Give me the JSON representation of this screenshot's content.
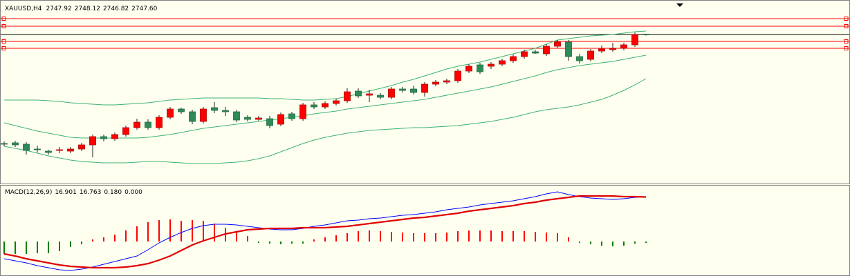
{
  "chart_data": [
    {
      "type": "candlestick",
      "title": "XAUUSD,H4",
      "open": [
        2668.6,
        2669.1,
        2668.1,
        2664.6,
        2663.1,
        2663.6,
        2663.1,
        2664.6,
        2667.6,
        2673.6,
        2672.1,
        2675.1,
        2680.1,
        2684.1,
        2680.1,
        2687.6,
        2693.6,
        2691.6,
        2684.6,
        2694.6,
        2692.6,
        2691.6,
        2687.6,
        2686.1,
        2686.6,
        2682.6,
        2690.1,
        2686.6,
        2696.6,
        2695.1,
        2697.6,
        2699.6,
        2706.6,
        2703.6,
        2703.6,
        2702.1,
        2708.1,
        2708.1,
        2705.6,
        2711.6,
        2713.1,
        2714.1,
        2721.1,
        2725.6,
        2724.6,
        2726.1,
        2728.6,
        2731.6,
        2735.1,
        2733.6,
        2739.1,
        2742.1,
        2731.6,
        2729.6,
        2735.6,
        2736.6,
        2737.6,
        2740.1,
        2747.92
      ],
      "high": [
        2670.1,
        2670.6,
        2669.6,
        2667.1,
        2664.1,
        2666.1,
        2666.1,
        2669.1,
        2675.1,
        2675.1,
        2676.6,
        2681.6,
        2686.6,
        2686.1,
        2689.1,
        2695.1,
        2694.6,
        2693.1,
        2695.1,
        2698.6,
        2695.1,
        2693.1,
        2689.1,
        2688.6,
        2688.6,
        2691.1,
        2691.6,
        2698.1,
        2698.6,
        2699.1,
        2701.1,
        2708.6,
        2708.6,
        2707.6,
        2705.1,
        2709.6,
        2709.6,
        2710.6,
        2713.1,
        2714.6,
        2715.6,
        2722.6,
        2726.1,
        2727.1,
        2727.6,
        2730.1,
        2733.1,
        2736.6,
        2736.6,
        2740.6,
        2743.6,
        2743.6,
        2733.6,
        2737.1,
        2739.6,
        2741.6,
        2741.6,
        2749.1,
        2748.12
      ],
      "low": [
        2666.6,
        2666.1,
        2660.6,
        2662.1,
        2660.6,
        2661.6,
        2661.6,
        2663.1,
        2658.6,
        2670.1,
        2670.6,
        2673.6,
        2678.6,
        2678.6,
        2678.6,
        2686.1,
        2690.1,
        2682.6,
        2683.1,
        2690.6,
        2688.6,
        2684.1,
        2684.6,
        2685.1,
        2679.6,
        2681.1,
        2685.1,
        2685.1,
        2693.6,
        2693.6,
        2696.1,
        2698.1,
        2701.6,
        2698.6,
        2700.6,
        2700.6,
        2705.6,
        2704.1,
        2702.6,
        2710.1,
        2711.6,
        2712.6,
        2719.6,
        2719.1,
        2722.6,
        2724.6,
        2727.1,
        2730.1,
        2733.6,
        2732.1,
        2737.6,
        2728.6,
        2726.6,
        2728.1,
        2734.1,
        2735.1,
        2736.1,
        2738.6,
        2746.82
      ],
      "close": [
        2668.1,
        2667.6,
        2663.6,
        2664.1,
        2662.1,
        2664.1,
        2664.6,
        2667.6,
        2673.6,
        2672.1,
        2675.1,
        2680.1,
        2684.1,
        2680.1,
        2687.6,
        2693.6,
        2691.6,
        2684.6,
        2693.6,
        2692.6,
        2691.6,
        2685.6,
        2686.1,
        2687.1,
        2681.6,
        2689.6,
        2686.6,
        2696.6,
        2695.1,
        2697.6,
        2699.6,
        2706.1,
        2703.1,
        2704.6,
        2702.1,
        2708.1,
        2707.1,
        2705.6,
        2711.6,
        2713.1,
        2714.1,
        2721.1,
        2724.6,
        2720.6,
        2726.1,
        2728.6,
        2731.6,
        2735.1,
        2734.1,
        2739.1,
        2742.1,
        2731.6,
        2728.6,
        2735.6,
        2737.1,
        2737.6,
        2740.1,
        2747.6,
        2747.6
      ],
      "close_value_label": "2747.60",
      "up_color": "#ff0000",
      "down_color": "#2e8b57",
      "series": [
        {
          "color": "#3cb371",
          "values": [
            2700.1,
            2700.1,
            2700.1,
            2700.1,
            2699.6,
            2699.1,
            2698.1,
            2697.6,
            2697.1,
            2696.6,
            2696.6,
            2697.1,
            2697.6,
            2698.1,
            2699.1,
            2700.1,
            2700.6,
            2701.1,
            2701.6,
            2701.6,
            2701.6,
            2701.6,
            2701.6,
            2701.6,
            2701.1,
            2701.1,
            2700.6,
            2700.1,
            2700.1,
            2700.6,
            2701.1,
            2702.6,
            2704.6,
            2706.6,
            2708.6,
            2710.6,
            2713.1,
            2715.1,
            2717.6,
            2720.1,
            2722.6,
            2724.6,
            2726.1,
            2727.6,
            2729.6,
            2731.6,
            2733.6,
            2735.6,
            2737.6,
            2740.6,
            2743.6,
            2744.6,
            2745.6,
            2746.6,
            2747.1,
            2747.6,
            2748.6,
            2749.6,
            2750.1
          ]
        },
        {
          "color": "#3cb371",
          "values": [
            2683.6,
            2681.6,
            2679.6,
            2677.6,
            2676.1,
            2674.6,
            2673.1,
            2672.6,
            2672.6,
            2672.6,
            2672.6,
            2672.6,
            2672.6,
            2673.1,
            2674.1,
            2675.1,
            2676.6,
            2678.1,
            2679.6,
            2680.6,
            2681.6,
            2682.6,
            2683.6,
            2684.6,
            2685.6,
            2686.6,
            2687.6,
            2688.6,
            2690.1,
            2691.1,
            2692.1,
            2693.6,
            2694.6,
            2695.6,
            2696.6,
            2697.6,
            2698.6,
            2699.6,
            2700.6,
            2702.1,
            2703.6,
            2705.1,
            2706.6,
            2708.1,
            2709.6,
            2711.6,
            2713.6,
            2715.6,
            2717.6,
            2720.1,
            2722.1,
            2723.6,
            2725.1,
            2726.1,
            2727.1,
            2728.1,
            2729.6,
            2731.1,
            2732.6
          ]
        },
        {
          "color": "#3cb371",
          "values": [
            2666.6,
            2665.1,
            2663.6,
            2661.6,
            2659.6,
            2658.1,
            2656.6,
            2655.6,
            2655.1,
            2654.6,
            2654.6,
            2654.6,
            2655.1,
            2655.6,
            2655.6,
            2655.1,
            2654.6,
            2654.1,
            2654.1,
            2654.1,
            2654.6,
            2655.1,
            2656.1,
            2657.6,
            2659.6,
            2662.6,
            2665.6,
            2668.6,
            2671.1,
            2673.1,
            2674.6,
            2676.1,
            2677.1,
            2678.1,
            2678.6,
            2679.1,
            2679.6,
            2680.1,
            2680.1,
            2680.6,
            2681.1,
            2681.6,
            2682.6,
            2683.6,
            2684.6,
            2686.1,
            2687.6,
            2689.6,
            2691.6,
            2693.1,
            2694.1,
            2695.1,
            2696.6,
            2698.6,
            2700.6,
            2703.6,
            2707.1,
            2711.1,
            2715.6
          ]
        }
      ],
      "levels": [
        2759.1,
        2753.6,
        2742.6,
        2737.6
      ],
      "level_color": "#ff0000",
      "ylim": [
        2639.6,
        2770.6
      ]
    },
    {
      "type": "macd",
      "title": "MACD(12,26,9)",
      "series": [
        {
          "color": "#0000ff",
          "values": [
            -6.5,
            -7.28,
            -8.06,
            -9.1,
            -9.88,
            -10.66,
            -10.92,
            -10.4,
            -9.62,
            -8.58,
            -7.54,
            -6.5,
            -5.46,
            -3.12,
            -0.52,
            1.56,
            3.38,
            4.94,
            5.98,
            6.5,
            6.5,
            6.24,
            5.72,
            5.2,
            4.68,
            4.42,
            4.42,
            4.94,
            5.72,
            6.24,
            7.02,
            7.8,
            8.06,
            8.58,
            8.84,
            9.36,
            9.88,
            10.14,
            10.66,
            11.18,
            11.96,
            12.48,
            13,
            13.78,
            14.3,
            14.82,
            15.34,
            16.12,
            16.9,
            17.94,
            18.72,
            17.68,
            16.9,
            16.38,
            16.12,
            15.86,
            16.12,
            16.64,
            16.901
          ]
        },
        {
          "color": "#e00000",
          "values": [
            -4.68,
            -5.46,
            -6.5,
            -7.28,
            -8.06,
            -8.84,
            -9.36,
            -9.62,
            -9.88,
            -9.88,
            -9.88,
            -9.62,
            -9.1,
            -8.32,
            -7.02,
            -5.46,
            -3.38,
            -1.3,
            0.26,
            1.56,
            2.86,
            3.64,
            4.42,
            4.68,
            4.94,
            4.94,
            4.94,
            5.2,
            5.2,
            5.2,
            5.46,
            5.72,
            6.24,
            6.76,
            7.28,
            7.8,
            8.32,
            8.84,
            9.1,
            9.62,
            10.14,
            10.66,
            11.44,
            11.96,
            12.48,
            13,
            13.52,
            14.3,
            14.82,
            15.6,
            16.12,
            16.64,
            17.16,
            17.16,
            17.16,
            17.16,
            16.9,
            16.9,
            16.763
          ]
        }
      ],
      "histogram": {
        "up_color": "#ff0000",
        "down_color": "#008000",
        "values": [
          -4.68,
          -4.68,
          -4.68,
          -4.42,
          -4.42,
          -3.64,
          -2.08,
          -1.04,
          0.78,
          1.56,
          2.6,
          4.16,
          5.72,
          7.28,
          8.06,
          8.32,
          7.8,
          8.06,
          7.8,
          6.76,
          5.2,
          3.64,
          2.08,
          -0.52,
          -0.78,
          -1.04,
          -0.78,
          -0.78,
          0.78,
          1.56,
          2.34,
          3.12,
          3.9,
          4.16,
          3.9,
          3.64,
          3.38,
          3.12,
          3.12,
          3.12,
          3.38,
          3.9,
          4.16,
          4.16,
          4.16,
          3.9,
          3.9,
          3.9,
          3.64,
          3.38,
          3.12,
          1.56,
          -0.52,
          -1.04,
          -1.56,
          -1.82,
          -1.56,
          -0.78,
          -0.52
        ]
      },
      "readout": [
        {
          "value": 0.18,
          "label": "0.180"
        },
        {
          "value": 0,
          "label": "0.000"
        }
      ],
      "ylim": [
        -12.48,
        20.8
      ]
    }
  ]
}
